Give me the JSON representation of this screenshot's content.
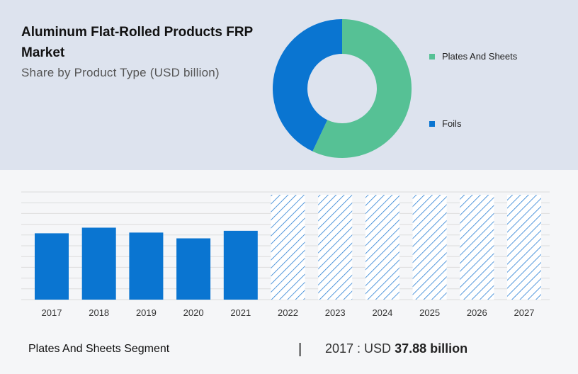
{
  "header": {
    "title": "Aluminum Flat-Rolled Products FRP Market",
    "subtitle": "Share by Product Type (USD billion)"
  },
  "colors": {
    "plates": "#56c195",
    "foils": "#0a75d1",
    "bar": "#0a75d1",
    "forecast_hatch": "#2a7fd4"
  },
  "chart_data": [
    {
      "type": "pie",
      "donut": true,
      "slices": [
        {
          "label": "Plates And Sheets",
          "value": 57,
          "color": "#56c195"
        },
        {
          "label": "Foils",
          "value": 43,
          "color": "#0a75d1"
        }
      ],
      "legend_position": "right"
    },
    {
      "type": "bar",
      "categories": [
        "2017",
        "2018",
        "2019",
        "2020",
        "2021",
        "2022",
        "2023",
        "2024",
        "2025",
        "2026",
        "2027"
      ],
      "values": [
        37.88,
        41.1,
        38.3,
        35.0,
        39.3,
        null,
        null,
        null,
        null,
        null,
        null
      ],
      "forecast": [
        false,
        false,
        false,
        false,
        false,
        true,
        true,
        true,
        true,
        true,
        true
      ],
      "ylim": [
        0,
        61.5
      ],
      "grid": true,
      "ylabel": "",
      "xlabel": ""
    }
  ],
  "footer": {
    "segment_label": "Plates And Sheets Segment",
    "divider": "|",
    "year_prefix": "2017 : USD",
    "value_text": "37.88 billion"
  }
}
